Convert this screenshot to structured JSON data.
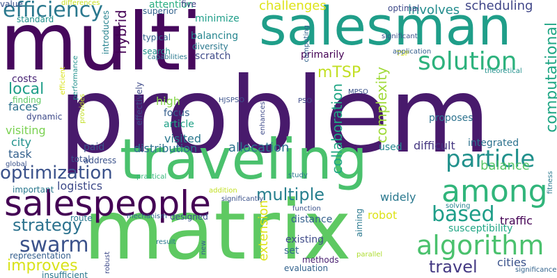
{
  "background_color": "#ffffff",
  "words": [
    {
      "text": "problem",
      "color": "#481a6c"
    },
    {
      "text": "multi",
      "color": "#46085c"
    },
    {
      "text": "matrix",
      "color": "#5ec962"
    },
    {
      "text": "traveling",
      "color": "#4ac16d"
    },
    {
      "text": "salesman",
      "color": "#1f9e89"
    },
    {
      "text": "salespeople",
      "color": "#440154"
    },
    {
      "text": "among",
      "color": "#31b57b"
    },
    {
      "text": "algorithm",
      "color": "#4ac16d"
    },
    {
      "text": "solution",
      "color": "#2db27d"
    },
    {
      "text": "particle",
      "color": "#21918c"
    },
    {
      "text": "based",
      "color": "#1f9e89"
    },
    {
      "text": "swarm",
      "color": "#3b528b"
    },
    {
      "text": "efficiency",
      "color": "#2a788e"
    },
    {
      "text": "optimization",
      "color": "#3b528b"
    },
    {
      "text": "strategy",
      "color": "#2c728e"
    },
    {
      "text": "multiple",
      "color": "#277f8e"
    },
    {
      "text": "travel",
      "color": "#443983"
    },
    {
      "text": "improves",
      "color": "#d8e219"
    },
    {
      "text": "computational",
      "color": "#21a685"
    },
    {
      "text": "scheduling",
      "color": "#404688"
    },
    {
      "text": "local",
      "color": "#1f9e89"
    },
    {
      "text": "mTSP",
      "color": "#c2df23"
    },
    {
      "text": "hybrid",
      "color": "#440154"
    },
    {
      "text": "challenges",
      "color": "#dde318"
    },
    {
      "text": "involves",
      "color": "#228c8d"
    },
    {
      "text": "collaboration",
      "color": "#21a685"
    },
    {
      "text": "complexity",
      "color": "#a0da39"
    },
    {
      "text": "allocation",
      "color": "#2c728e"
    },
    {
      "text": "distribution",
      "color": "#2c728e"
    },
    {
      "text": "logistics",
      "color": "#3e4a89"
    },
    {
      "text": "balance",
      "color": "#56c667"
    },
    {
      "text": "difficult",
      "color": "#453781"
    },
    {
      "text": "extension",
      "color": "#dde318"
    },
    {
      "text": "traffic",
      "color": "#440154"
    },
    {
      "text": "cities",
      "color": "#3b528b"
    },
    {
      "text": "visiting",
      "color": "#7ad151"
    },
    {
      "text": "city",
      "color": "#21918c"
    },
    {
      "text": "faces",
      "color": "#2c728e"
    },
    {
      "text": "robot",
      "color": "#dde318"
    },
    {
      "text": "widely",
      "color": "#2a788e"
    },
    {
      "text": "high",
      "color": "#86d549"
    },
    {
      "text": "visited",
      "color": "#2a788e"
    },
    {
      "text": "task",
      "color": "#34618d"
    },
    {
      "text": "set",
      "color": "#31688e"
    },
    {
      "text": "existing",
      "color": "#3e4a89"
    },
    {
      "text": "used",
      "color": "#25858e"
    },
    {
      "text": "balancing",
      "color": "#25858e"
    },
    {
      "text": "minimize",
      "color": "#1f9e89"
    },
    {
      "text": "attention",
      "color": "#28ae80"
    },
    {
      "text": "scratch",
      "color": "#3e4a89"
    },
    {
      "text": "primarily",
      "color": "#440154"
    },
    {
      "text": "proposes",
      "color": "#2c728e"
    },
    {
      "text": "integrated",
      "color": "#2c728e"
    },
    {
      "text": "susceptibility",
      "color": "#21a685"
    },
    {
      "text": "distance",
      "color": "#34618d"
    },
    {
      "text": "focus",
      "color": "#355f8d"
    },
    {
      "text": "article",
      "color": "#1fa187"
    },
    {
      "text": "paid",
      "color": "#3b528b"
    },
    {
      "text": "total",
      "color": "#3b528b"
    },
    {
      "text": "costs",
      "color": "#482475"
    },
    {
      "text": "address",
      "color": "#3b528b"
    },
    {
      "text": "diversity",
      "color": "#2a788e"
    },
    {
      "text": "search",
      "color": "#21918c"
    },
    {
      "text": "typical",
      "color": "#33638d"
    },
    {
      "text": "superior",
      "color": "#33638d"
    },
    {
      "text": "optimal",
      "color": "#3e4a89"
    },
    {
      "text": "five",
      "color": "#414487"
    },
    {
      "text": "methods",
      "color": "#481f70"
    },
    {
      "text": "aiming",
      "color": "#2a788e"
    },
    {
      "text": "representation",
      "color": "#355f8d"
    },
    {
      "text": "insufficient",
      "color": "#2a788e"
    },
    {
      "text": "evaluation",
      "color": "#33638d"
    },
    {
      "text": "designed",
      "color": "#3b528b"
    },
    {
      "text": "function",
      "color": "#3b528b"
    },
    {
      "text": "mechanism",
      "color": "#31688e"
    },
    {
      "text": "dynamic",
      "color": "#3e4a89"
    },
    {
      "text": "finding",
      "color": "#5ec962"
    },
    {
      "text": "standard",
      "color": "#21918c"
    },
    {
      "text": "differences",
      "color": "#c8e020"
    },
    {
      "text": "introduces",
      "color": "#26828e"
    },
    {
      "text": "effectively",
      "color": "#3e4a89"
    },
    {
      "text": "capabilities",
      "color": "#2a788e"
    },
    {
      "text": "important",
      "color": "#2a788e"
    },
    {
      "text": "global",
      "color": "#3b528b"
    },
    {
      "text": "route",
      "color": "#2a788e"
    },
    {
      "text": "addition",
      "color": "#c2df23"
    },
    {
      "text": "significantly",
      "color": "#3b528b"
    },
    {
      "text": "practical",
      "color": "#35b779"
    },
    {
      "text": "study",
      "color": "#2a788e"
    },
    {
      "text": "solving",
      "color": "#26828e"
    },
    {
      "text": "fitness",
      "color": "#2a788e"
    },
    {
      "text": "significance",
      "color": "#33638d"
    },
    {
      "text": "parallel",
      "color": "#addc30"
    },
    {
      "text": "provides",
      "color": "#c2df23"
    },
    {
      "text": "robust",
      "color": "#3e4a89"
    },
    {
      "text": "result",
      "color": "#2a788e"
    },
    {
      "text": "new",
      "color": "#355f8d"
    },
    {
      "text": "MPSO",
      "color": "#3b528b"
    },
    {
      "text": "PSO",
      "color": "#3e4a89"
    },
    {
      "text": "TSP",
      "color": "#d8e219"
    },
    {
      "text": "HJSPSO",
      "color": "#3b528b"
    },
    {
      "text": "enhances",
      "color": "#3e4a89"
    },
    {
      "text": "computing",
      "color": "#33638d"
    },
    {
      "text": "significant",
      "color": "#3b528b"
    },
    {
      "text": "application",
      "color": "#355f8d"
    },
    {
      "text": "theoretical",
      "color": "#21918c"
    },
    {
      "text": "efficient",
      "color": "#d8e219"
    },
    {
      "text": "performance",
      "color": "#21918c"
    },
    {
      "text": "value",
      "color": "#3b528b"
    }
  ]
}
